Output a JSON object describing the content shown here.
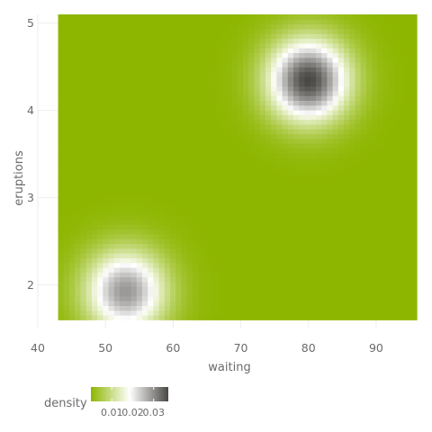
{
  "chart_data": {
    "type": "heatmap",
    "title": "",
    "xlabel": "waiting",
    "ylabel": "eruptions",
    "xlim": [
      40,
      96
    ],
    "ylim": [
      1.5,
      5.1
    ],
    "x_ticks": [
      40,
      50,
      60,
      70,
      80,
      90
    ],
    "y_ticks": [
      2,
      3,
      4,
      5
    ],
    "grid": true,
    "data_extent": {
      "x": [
        43,
        96
      ],
      "y": [
        1.6,
        5.1
      ]
    },
    "density_peaks": [
      {
        "waiting": 80,
        "eruptions": 4.35,
        "density": 0.037
      },
      {
        "waiting": 53,
        "eruptions": 1.93,
        "density": 0.029
      }
    ],
    "legend": {
      "title": "density",
      "position": "bottom-left",
      "ticks": [
        "0.01",
        "0.02",
        "0.03"
      ],
      "tick_values": [
        0.01,
        0.02,
        0.03
      ],
      "range": [
        0.0,
        0.037
      ]
    },
    "colors": {
      "low": "#8db600",
      "mid": "#ffffff",
      "high": "#4a4844"
    }
  }
}
